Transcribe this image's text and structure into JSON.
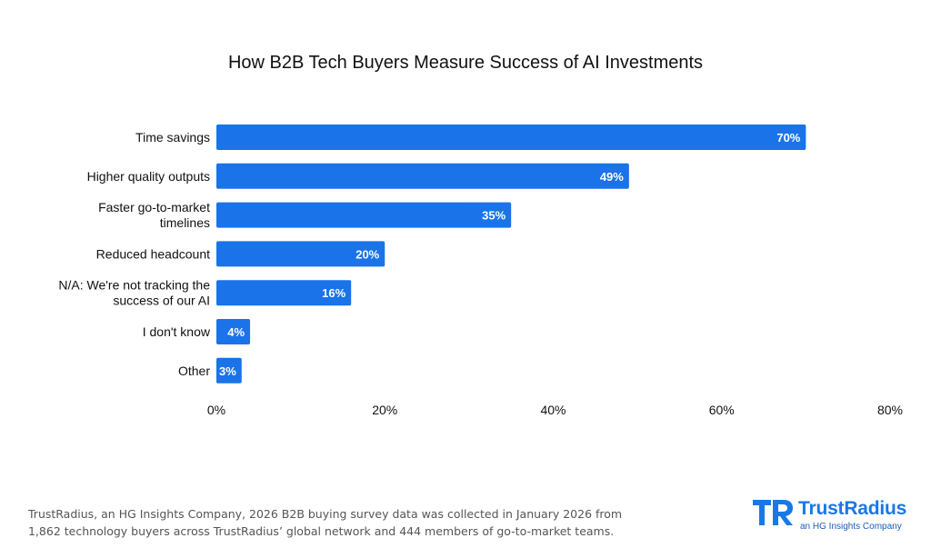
{
  "chart_data": {
    "type": "bar",
    "orientation": "horizontal",
    "title": "How B2B Tech Buyers Measure Success of AI Investments",
    "categories": [
      [
        "Time savings"
      ],
      [
        "Higher quality outputs"
      ],
      [
        "Faster go-to-market",
        "timelines"
      ],
      [
        "Reduced headcount"
      ],
      [
        "N/A: We're not tracking the",
        "success of our AI"
      ],
      [
        "I don't know"
      ],
      [
        "Other"
      ]
    ],
    "values": [
      70,
      49,
      35,
      20,
      16,
      4,
      3
    ],
    "value_labels": [
      "70%",
      "49%",
      "35%",
      "20%",
      "16%",
      "4%",
      "3%"
    ],
    "xlim": [
      0,
      80
    ],
    "xticks": [
      0,
      20,
      40,
      60,
      80
    ],
    "xtick_labels": [
      "0%",
      "20%",
      "40%",
      "60%",
      "80%"
    ],
    "grid": false,
    "bar_color": "#1a73e8"
  },
  "footnote": {
    "line1": "TrustRadius, an HG Insights Company, 2026 B2B buying survey data was collected in January 2026 from",
    "line2": "1,862 technology buyers across TrustRadius’ global network and 444 members of go-to-market teams."
  },
  "logo": {
    "name": "TrustRadius",
    "subtitle": "an HG Insights Company",
    "color": "#1a78e6"
  }
}
